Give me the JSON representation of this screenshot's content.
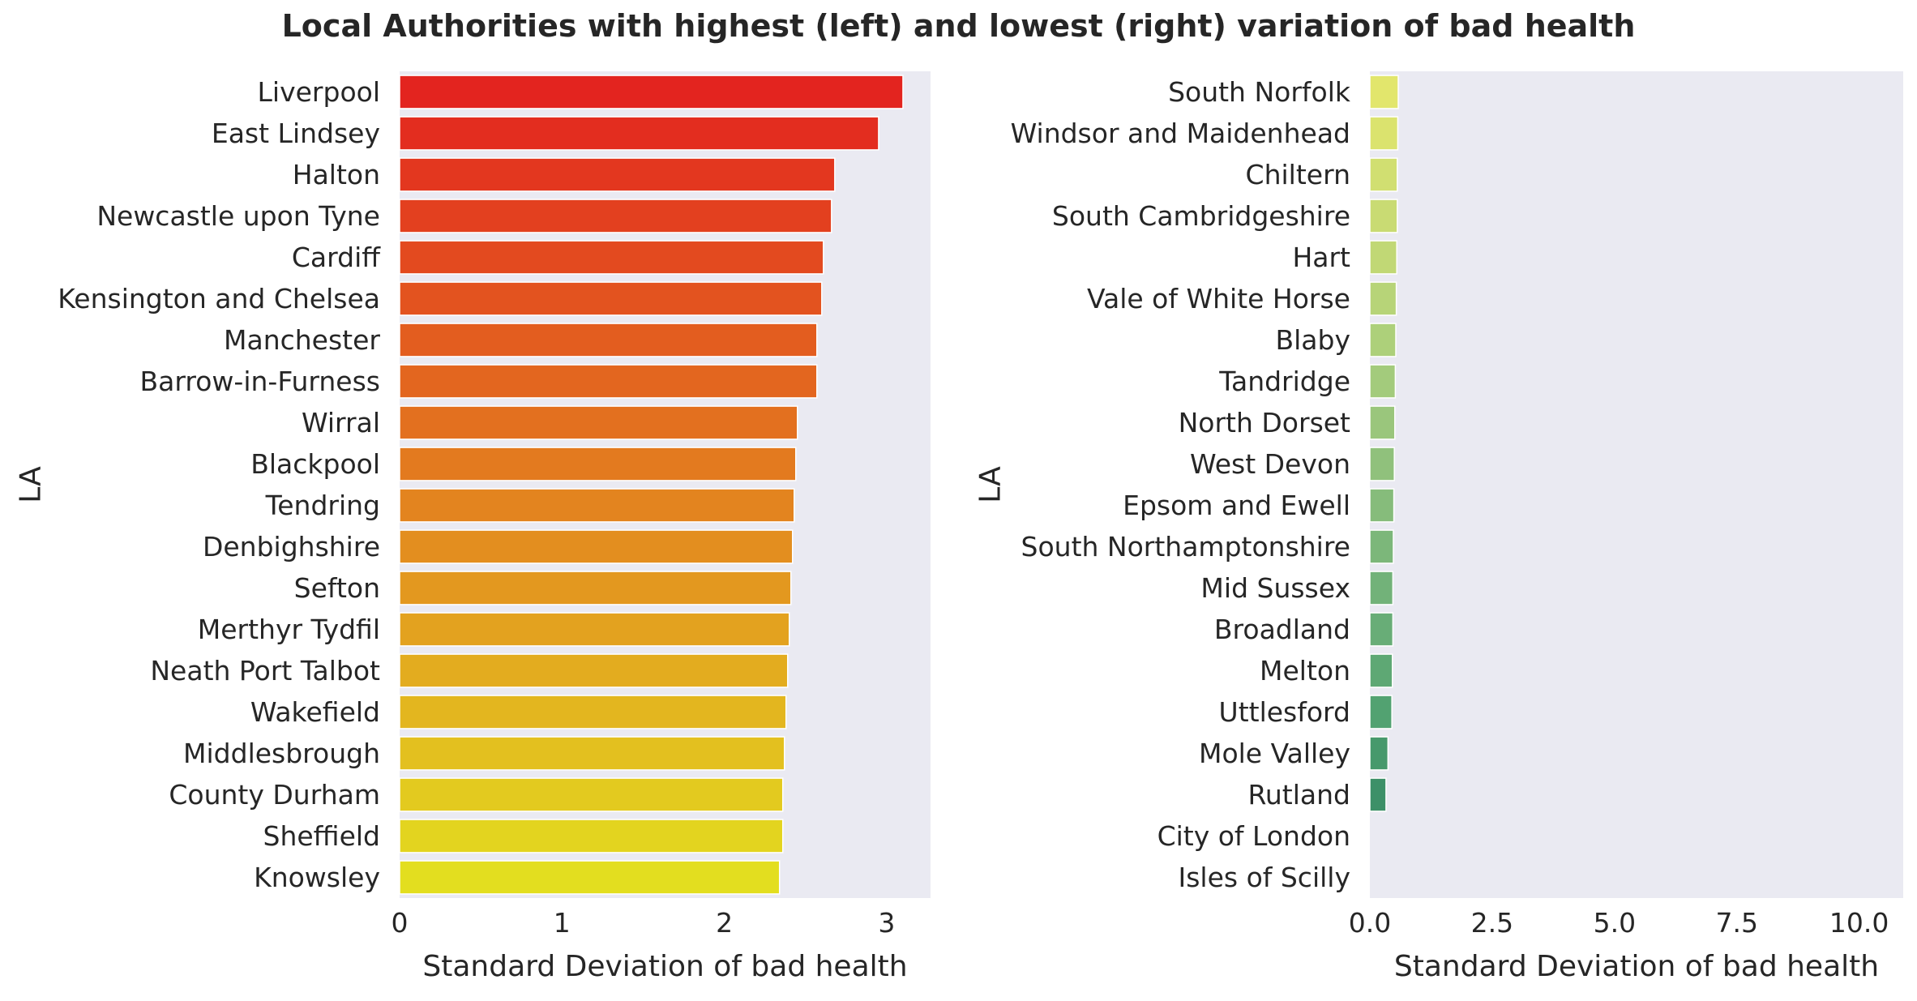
{
  "title": "Local Authorities with highest (left) and lowest (right) variation of bad health",
  "chart_data": [
    {
      "type": "bar",
      "orientation": "horizontal",
      "xlabel": "Standard Deviation of bad health",
      "ylabel": "LA",
      "xlim": [
        0,
        3.27
      ],
      "xticks": [
        "0",
        "1",
        "2",
        "3"
      ],
      "xtick_values": [
        0,
        1,
        2,
        3
      ],
      "grid": false,
      "categories": [
        "Liverpool",
        "East Lindsey",
        "Halton",
        "Newcastle upon Tyne",
        "Cardiff",
        "Kensington and Chelsea",
        "Manchester",
        "Barrow-in-Furness",
        "Wirral",
        "Blackpool",
        "Tendring",
        "Denbighshire",
        "Sefton",
        "Merthyr Tydfil",
        "Neath Port Talbot",
        "Wakefield",
        "Middlesbrough",
        "County Durham",
        "Sheffield",
        "Knowsley"
      ],
      "values": [
        3.1,
        2.95,
        2.68,
        2.66,
        2.61,
        2.6,
        2.57,
        2.57,
        2.45,
        2.44,
        2.43,
        2.42,
        2.41,
        2.4,
        2.39,
        2.38,
        2.37,
        2.36,
        2.36,
        2.34
      ],
      "colors": [
        "#e3241f",
        "#e32d1f",
        "#e3371f",
        "#e3401f",
        "#e34a1f",
        "#e3531f",
        "#e35d1f",
        "#e3661f",
        "#e3701f",
        "#e37a1f",
        "#e3841f",
        "#e38e1f",
        "#e3981f",
        "#e3a21f",
        "#e3ac1f",
        "#e3b61f",
        "#e3c01f",
        "#e3ca1f",
        "#e3d41f",
        "#e3de1f"
      ]
    },
    {
      "type": "bar",
      "orientation": "horizontal",
      "xlabel": "Standard Deviation of bad health",
      "ylabel": "LA",
      "xlim": [
        0,
        10.9
      ],
      "xticks": [
        "0.0",
        "2.5",
        "5.0",
        "7.5",
        "10.0"
      ],
      "xtick_values": [
        0,
        2.5,
        5.0,
        7.5,
        10.0
      ],
      "grid": false,
      "categories": [
        "South Norfolk",
        "Windsor and Maidenhead",
        "Chiltern",
        "South Cambridgeshire",
        "Hart",
        "Vale of White Horse",
        "Blaby",
        "Tandridge",
        "North Dorset",
        "West Devon",
        "Epsom and Ewell",
        "South Northamptonshire",
        "Mid Sussex",
        "Broadland",
        "Melton",
        "Uttlesford",
        "Mole Valley",
        "Rutland",
        "City of London",
        "Isles of Scilly"
      ],
      "values": [
        0.58,
        0.57,
        0.56,
        0.56,
        0.55,
        0.54,
        0.53,
        0.52,
        0.51,
        0.5,
        0.49,
        0.48,
        0.47,
        0.47,
        0.46,
        0.45,
        0.37,
        0.33,
        0.0,
        0.0
      ],
      "colors": [
        "#e2e66c",
        "#dbe36e",
        "#d1df71",
        "#c9db73",
        "#c1d875",
        "#b7d478",
        "#add07a",
        "#a3cb7c",
        "#9ac67c",
        "#90c17c",
        "#86bc7b",
        "#7cb77a",
        "#72b279",
        "#68ad77",
        "#5ea874",
        "#52a271",
        "#47996c",
        "#3d9068",
        "#2f8a65",
        "#2a8562"
      ]
    }
  ]
}
